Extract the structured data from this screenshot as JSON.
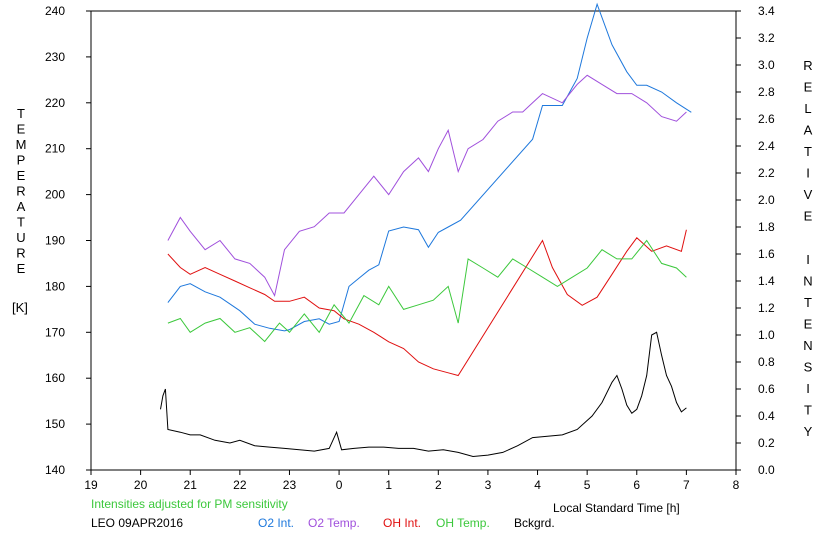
{
  "chart_data": {
    "type": "line",
    "left_axis_label": "TEMPERATURE",
    "left_axis_unit": "[K]",
    "right_axis_label": "RELATIVE INTENSITY",
    "xlabel": "Local Standard Time [h]",
    "note": "Intensities adjusted for PM sensitivity",
    "station_date": "LEO 09APR2016",
    "x_ticks": [
      "19",
      "20",
      "21",
      "22",
      "23",
      "0",
      "1",
      "2",
      "3",
      "4",
      "5",
      "6",
      "7",
      "8"
    ],
    "xlim": [
      19,
      32
    ],
    "ylim_left": [
      140,
      240
    ],
    "ylim_right": [
      0.0,
      3.4
    ],
    "y_ticks_left": [
      "140",
      "150",
      "160",
      "170",
      "180",
      "190",
      "200",
      "210",
      "220",
      "230",
      "240"
    ],
    "y_ticks_right": [
      "0.0",
      "0.2",
      "0.4",
      "0.6",
      "0.8",
      "1.0",
      "1.2",
      "1.4",
      "1.6",
      "1.8",
      "2.0",
      "2.2",
      "2.4",
      "2.6",
      "2.8",
      "3.0",
      "3.2",
      "3.4"
    ],
    "colors": {
      "o2_int": "#1e78dc",
      "o2_temp": "#a050dc",
      "oh_int": "#e01010",
      "oh_temp": "#3cc83c",
      "bckgrd": "#000000",
      "note": "#3cc83c"
    },
    "series": [
      {
        "name": "O2 Int.",
        "axis": "right",
        "points": [
          [
            20.55,
            1.24
          ],
          [
            20.8,
            1.36
          ],
          [
            21.0,
            1.38
          ],
          [
            21.3,
            1.32
          ],
          [
            21.6,
            1.28
          ],
          [
            22.0,
            1.18
          ],
          [
            22.3,
            1.08
          ],
          [
            22.6,
            1.05
          ],
          [
            22.9,
            1.03
          ],
          [
            23.0,
            1.04
          ],
          [
            23.3,
            1.1
          ],
          [
            23.6,
            1.12
          ],
          [
            23.8,
            1.08
          ],
          [
            24.0,
            1.1
          ],
          [
            24.2,
            1.36
          ],
          [
            24.4,
            1.42
          ],
          [
            24.6,
            1.48
          ],
          [
            24.8,
            1.52
          ],
          [
            25.0,
            1.77
          ],
          [
            25.3,
            1.8
          ],
          [
            25.6,
            1.78
          ],
          [
            25.8,
            1.65
          ],
          [
            26.0,
            1.76
          ],
          [
            26.2,
            1.8
          ],
          [
            26.45,
            1.85
          ],
          [
            27.9,
            2.45
          ],
          [
            28.1,
            2.7
          ],
          [
            28.5,
            2.7
          ],
          [
            28.8,
            2.9
          ],
          [
            29.0,
            3.2
          ],
          [
            29.2,
            3.45
          ],
          [
            29.5,
            3.15
          ],
          [
            29.8,
            2.95
          ],
          [
            30.0,
            2.85
          ],
          [
            30.2,
            2.85
          ],
          [
            30.5,
            2.8
          ],
          [
            30.8,
            2.72
          ],
          [
            31.1,
            2.65
          ]
        ]
      },
      {
        "name": "O2 Temp.",
        "axis": "left",
        "points": [
          [
            20.55,
            190
          ],
          [
            20.8,
            195
          ],
          [
            21.0,
            192
          ],
          [
            21.3,
            188
          ],
          [
            21.6,
            190
          ],
          [
            21.9,
            186
          ],
          [
            22.2,
            185
          ],
          [
            22.5,
            182
          ],
          [
            22.7,
            178
          ],
          [
            22.9,
            188
          ],
          [
            23.2,
            192
          ],
          [
            23.5,
            193
          ],
          [
            23.8,
            196
          ],
          [
            24.1,
            196
          ],
          [
            24.4,
            200
          ],
          [
            24.7,
            204
          ],
          [
            25.0,
            200
          ],
          [
            25.3,
            205
          ],
          [
            25.6,
            208
          ],
          [
            25.8,
            205
          ],
          [
            26.0,
            210
          ],
          [
            26.2,
            214
          ],
          [
            26.4,
            205
          ],
          [
            26.6,
            210
          ],
          [
            26.9,
            212
          ],
          [
            27.2,
            216
          ],
          [
            27.5,
            218
          ],
          [
            27.7,
            218
          ],
          [
            27.9,
            220
          ],
          [
            28.1,
            222
          ],
          [
            28.5,
            220
          ],
          [
            28.8,
            224
          ],
          [
            29.0,
            226
          ],
          [
            29.3,
            224
          ],
          [
            29.6,
            222
          ],
          [
            29.9,
            222
          ],
          [
            30.2,
            220
          ],
          [
            30.5,
            217
          ],
          [
            30.8,
            216
          ],
          [
            31.0,
            218
          ]
        ]
      },
      {
        "name": "OH Int.",
        "axis": "right",
        "points": [
          [
            20.55,
            1.6
          ],
          [
            20.8,
            1.5
          ],
          [
            21.0,
            1.45
          ],
          [
            21.3,
            1.5
          ],
          [
            21.6,
            1.45
          ],
          [
            21.9,
            1.4
          ],
          [
            22.2,
            1.35
          ],
          [
            22.5,
            1.3
          ],
          [
            22.7,
            1.25
          ],
          [
            23.0,
            1.25
          ],
          [
            23.3,
            1.28
          ],
          [
            23.6,
            1.2
          ],
          [
            23.9,
            1.18
          ],
          [
            24.1,
            1.12
          ],
          [
            24.4,
            1.08
          ],
          [
            24.7,
            1.02
          ],
          [
            25.0,
            0.95
          ],
          [
            25.3,
            0.9
          ],
          [
            25.6,
            0.8
          ],
          [
            25.9,
            0.75
          ],
          [
            26.2,
            0.72
          ],
          [
            26.4,
            0.7
          ],
          [
            28.1,
            1.7
          ],
          [
            28.3,
            1.5
          ],
          [
            28.6,
            1.3
          ],
          [
            28.9,
            1.22
          ],
          [
            29.2,
            1.28
          ],
          [
            29.5,
            1.45
          ],
          [
            29.8,
            1.62
          ],
          [
            30.0,
            1.72
          ],
          [
            30.3,
            1.62
          ],
          [
            30.6,
            1.66
          ],
          [
            30.9,
            1.62
          ],
          [
            31.0,
            1.78
          ]
        ]
      },
      {
        "name": "OH Temp.",
        "axis": "left",
        "points": [
          [
            20.55,
            172
          ],
          [
            20.8,
            173
          ],
          [
            21.0,
            170
          ],
          [
            21.3,
            172
          ],
          [
            21.6,
            173
          ],
          [
            21.9,
            170
          ],
          [
            22.2,
            171
          ],
          [
            22.5,
            168
          ],
          [
            22.8,
            172
          ],
          [
            23.0,
            170
          ],
          [
            23.3,
            174
          ],
          [
            23.6,
            170
          ],
          [
            23.9,
            176
          ],
          [
            24.2,
            172
          ],
          [
            24.5,
            178
          ],
          [
            24.8,
            176
          ],
          [
            25.0,
            180
          ],
          [
            25.3,
            175
          ],
          [
            25.6,
            176
          ],
          [
            25.9,
            177
          ],
          [
            26.2,
            180
          ],
          [
            26.4,
            172
          ],
          [
            26.6,
            186
          ],
          [
            26.9,
            184
          ],
          [
            27.2,
            182
          ],
          [
            27.5,
            186
          ],
          [
            27.8,
            184
          ],
          [
            28.1,
            182
          ],
          [
            28.4,
            180
          ],
          [
            28.7,
            182
          ],
          [
            29.0,
            184
          ],
          [
            29.3,
            188
          ],
          [
            29.6,
            186
          ],
          [
            29.9,
            186
          ],
          [
            30.2,
            190
          ],
          [
            30.5,
            185
          ],
          [
            30.8,
            184
          ],
          [
            31.0,
            182
          ]
        ]
      },
      {
        "name": "Bckgrd.",
        "axis": "right",
        "points": [
          [
            20.4,
            0.45
          ],
          [
            20.45,
            0.55
          ],
          [
            20.5,
            0.6
          ],
          [
            20.55,
            0.3
          ],
          [
            20.8,
            0.28
          ],
          [
            21.0,
            0.26
          ],
          [
            21.2,
            0.26
          ],
          [
            21.5,
            0.22
          ],
          [
            21.8,
            0.2
          ],
          [
            22.0,
            0.22
          ],
          [
            22.3,
            0.18
          ],
          [
            22.6,
            0.17
          ],
          [
            22.9,
            0.16
          ],
          [
            23.2,
            0.15
          ],
          [
            23.5,
            0.14
          ],
          [
            23.8,
            0.16
          ],
          [
            23.95,
            0.28
          ],
          [
            24.05,
            0.15
          ],
          [
            24.3,
            0.16
          ],
          [
            24.6,
            0.17
          ],
          [
            24.9,
            0.17
          ],
          [
            25.2,
            0.16
          ],
          [
            25.5,
            0.16
          ],
          [
            25.8,
            0.14
          ],
          [
            26.1,
            0.15
          ],
          [
            26.4,
            0.13
          ],
          [
            26.7,
            0.1
          ],
          [
            27.0,
            0.11
          ],
          [
            27.3,
            0.13
          ],
          [
            27.6,
            0.18
          ],
          [
            27.9,
            0.24
          ],
          [
            28.2,
            0.25
          ],
          [
            28.5,
            0.26
          ],
          [
            28.8,
            0.3
          ],
          [
            29.1,
            0.4
          ],
          [
            29.3,
            0.5
          ],
          [
            29.5,
            0.65
          ],
          [
            29.6,
            0.7
          ],
          [
            29.7,
            0.6
          ],
          [
            29.8,
            0.48
          ],
          [
            29.9,
            0.42
          ],
          [
            30.0,
            0.45
          ],
          [
            30.1,
            0.55
          ],
          [
            30.2,
            0.7
          ],
          [
            30.3,
            1.0
          ],
          [
            30.4,
            1.02
          ],
          [
            30.5,
            0.85
          ],
          [
            30.6,
            0.7
          ],
          [
            30.7,
            0.62
          ],
          [
            30.8,
            0.5
          ],
          [
            30.9,
            0.43
          ],
          [
            31.0,
            0.46
          ]
        ]
      }
    ]
  }
}
